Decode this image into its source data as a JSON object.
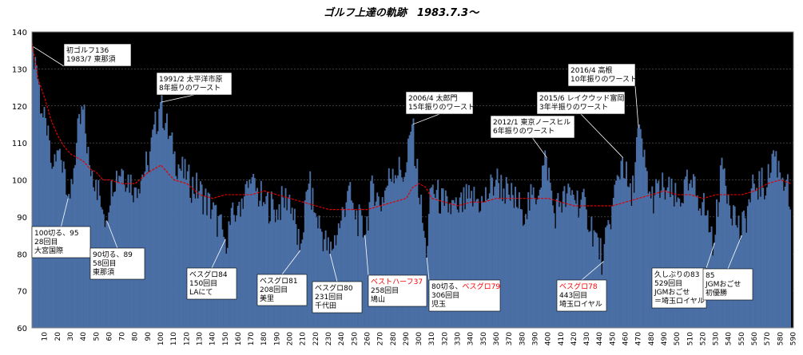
{
  "chart_data": {
    "type": "bar",
    "title": "ゴルフ上達の軌跡　1983.7.3〜",
    "xlabel": "",
    "ylabel": "",
    "ylim": [
      60,
      140
    ],
    "xlim": [
      0,
      590
    ],
    "yticks": [
      60,
      70,
      80,
      90,
      100,
      110,
      120,
      130,
      140
    ],
    "xticks": [
      10,
      20,
      30,
      40,
      50,
      60,
      70,
      80,
      90,
      100,
      110,
      120,
      130,
      140,
      150,
      160,
      170,
      180,
      190,
      200,
      210,
      220,
      230,
      240,
      250,
      260,
      270,
      280,
      290,
      300,
      310,
      320,
      330,
      340,
      350,
      360,
      370,
      380,
      390,
      400,
      410,
      420,
      430,
      440,
      450,
      460,
      470,
      480,
      490,
      500,
      510,
      520,
      530,
      540,
      550,
      560,
      570,
      580,
      590
    ],
    "grid": "horizontal",
    "colors": {
      "plot_bg": "#000000",
      "bar": "#4a6fa5",
      "moving_average": "#e00000",
      "frame": "#808080",
      "highlight_text": "#ff0000"
    },
    "series": [
      {
        "kind": "bar",
        "points": [
          [
            1,
            136
          ],
          [
            4,
            131
          ],
          [
            8,
            118
          ],
          [
            12,
            112
          ],
          [
            16,
            103
          ],
          [
            20,
            108
          ],
          [
            25,
            105
          ],
          [
            30,
            95
          ],
          [
            35,
            110
          ],
          [
            40,
            119
          ],
          [
            45,
            104
          ],
          [
            50,
            100
          ],
          [
            55,
            92
          ],
          [
            58,
            89
          ],
          [
            62,
            100
          ],
          [
            70,
            103
          ],
          [
            80,
            98
          ],
          [
            90,
            104
          ],
          [
            100,
            121
          ],
          [
            110,
            107
          ],
          [
            120,
            100
          ],
          [
            130,
            97
          ],
          [
            140,
            92
          ],
          [
            150,
            84
          ],
          [
            160,
            93
          ],
          [
            170,
            99
          ],
          [
            180,
            94
          ],
          [
            190,
            92
          ],
          [
            200,
            96
          ],
          [
            208,
            81
          ],
          [
            215,
            99
          ],
          [
            220,
            91
          ],
          [
            225,
            86
          ],
          [
            231,
            80
          ],
          [
            240,
            89
          ],
          [
            245,
            97
          ],
          [
            250,
            92
          ],
          [
            258,
            85
          ],
          [
            265,
            99
          ],
          [
            270,
            93
          ],
          [
            280,
            103
          ],
          [
            290,
            102
          ],
          [
            295,
            115
          ],
          [
            306,
            79
          ],
          [
            310,
            98
          ],
          [
            320,
            93
          ],
          [
            330,
            92
          ],
          [
            340,
            95
          ],
          [
            350,
            94
          ],
          [
            360,
            100
          ],
          [
            370,
            96
          ],
          [
            380,
            92
          ],
          [
            390,
            95
          ],
          [
            399,
            106
          ],
          [
            405,
            91
          ],
          [
            410,
            94
          ],
          [
            420,
            96
          ],
          [
            430,
            92
          ],
          [
            443,
            78
          ],
          [
            450,
            93
          ],
          [
            458,
            106
          ],
          [
            465,
            93
          ],
          [
            470,
            114
          ],
          [
            480,
            95
          ],
          [
            490,
            98
          ],
          [
            500,
            94
          ],
          [
            510,
            99
          ],
          [
            520,
            94
          ],
          [
            529,
            83
          ],
          [
            535,
            106
          ],
          [
            540,
            96
          ],
          [
            550,
            85
          ],
          [
            560,
            99
          ],
          [
            570,
            98
          ],
          [
            575,
            108
          ],
          [
            580,
            102
          ],
          [
            585,
            100
          ],
          [
            588,
            92
          ]
        ]
      },
      {
        "kind": "moving-average",
        "points": [
          [
            0,
            137
          ],
          [
            5,
            127
          ],
          [
            10,
            122
          ],
          [
            15,
            116
          ],
          [
            20,
            112
          ],
          [
            25,
            109
          ],
          [
            30,
            107
          ],
          [
            35,
            106
          ],
          [
            40,
            105
          ],
          [
            45,
            103
          ],
          [
            50,
            102
          ],
          [
            55,
            100
          ],
          [
            60,
            100
          ],
          [
            70,
            99
          ],
          [
            80,
            99
          ],
          [
            90,
            102
          ],
          [
            100,
            104
          ],
          [
            110,
            100
          ],
          [
            120,
            99
          ],
          [
            130,
            96
          ],
          [
            140,
            95
          ],
          [
            150,
            96
          ],
          [
            160,
            96
          ],
          [
            170,
            96
          ],
          [
            180,
            97
          ],
          [
            190,
            96
          ],
          [
            200,
            95
          ],
          [
            210,
            94
          ],
          [
            220,
            93
          ],
          [
            230,
            92
          ],
          [
            240,
            92
          ],
          [
            250,
            92
          ],
          [
            260,
            92
          ],
          [
            270,
            93
          ],
          [
            280,
            94
          ],
          [
            290,
            95
          ],
          [
            295,
            98
          ],
          [
            300,
            99
          ],
          [
            305,
            98
          ],
          [
            310,
            95
          ],
          [
            320,
            94
          ],
          [
            330,
            93
          ],
          [
            340,
            94
          ],
          [
            350,
            94
          ],
          [
            360,
            95
          ],
          [
            370,
            95
          ],
          [
            380,
            95
          ],
          [
            390,
            95
          ],
          [
            400,
            95
          ],
          [
            410,
            94
          ],
          [
            420,
            93
          ],
          [
            430,
            93
          ],
          [
            440,
            93
          ],
          [
            450,
            93
          ],
          [
            460,
            94
          ],
          [
            470,
            95
          ],
          [
            480,
            96
          ],
          [
            490,
            97
          ],
          [
            500,
            96
          ],
          [
            510,
            96
          ],
          [
            520,
            95
          ],
          [
            530,
            96
          ],
          [
            540,
            96
          ],
          [
            550,
            96
          ],
          [
            560,
            97
          ],
          [
            570,
            99
          ],
          [
            580,
            100
          ],
          [
            588,
            99
          ]
        ]
      }
    ],
    "annotations": [
      {
        "lines": [
          "初ゴルフ136",
          "1983/7 東那須"
        ],
        "x": 1,
        "y": 136,
        "highlight": [
          false,
          false
        ]
      },
      {
        "lines": [
          "1991/2 太平洋市原",
          "8年振りのワースト"
        ],
        "x": 100,
        "y": 121,
        "highlight": [
          false,
          false
        ]
      },
      {
        "lines": [
          "2006/4 太郎門",
          "15年振りのワースト"
        ],
        "x": 295,
        "y": 115,
        "highlight": [
          false,
          false
        ]
      },
      {
        "lines": [
          "2012/1 東京ノースヒル",
          "6年振りのワースト"
        ],
        "x": 399,
        "y": 106,
        "highlight": [
          false,
          false
        ]
      },
      {
        "lines": [
          "2015/6 レイクウッド富岡",
          "3年半振りのワースト"
        ],
        "x": 458,
        "y": 106,
        "highlight": [
          false,
          false
        ]
      },
      {
        "lines": [
          "2016/4 高根",
          "10年振りのワースト"
        ],
        "x": 470,
        "y": 114,
        "highlight": [
          false,
          false
        ]
      },
      {
        "lines": [
          "100切る、95",
          "28回目",
          "大宮国際"
        ],
        "x": 28,
        "y": 95,
        "highlight": [
          false,
          false,
          false
        ]
      },
      {
        "lines": [
          "90切る、89",
          "58回目",
          "東那須"
        ],
        "x": 58,
        "y": 89,
        "highlight": [
          false,
          false,
          false
        ]
      },
      {
        "lines": [
          "ベスグロ84",
          "150回目",
          "LAにて"
        ],
        "x": 150,
        "y": 84,
        "highlight": [
          false,
          false,
          false
        ]
      },
      {
        "lines": [
          "ベスグロ81",
          "208回目",
          "美里"
        ],
        "x": 208,
        "y": 81,
        "highlight": [
          false,
          false,
          false
        ]
      },
      {
        "lines": [
          "ベスグロ80",
          "231回目",
          "千代田"
        ],
        "x": 231,
        "y": 80,
        "highlight": [
          false,
          false,
          false
        ]
      },
      {
        "lines": [
          "ベストハーフ37",
          "258回目",
          "鳩山"
        ],
        "x": 258,
        "y": 85,
        "highlight": [
          true,
          false,
          false
        ]
      },
      {
        "lines": [
          "80切る、ベスグロ79",
          "306回目",
          "児玉"
        ],
        "x": 306,
        "y": 79,
        "highlight": [
          false,
          false,
          false
        ],
        "partial": {
          "line": 0,
          "plain": "80切る、",
          "red": "ベスグロ79"
        }
      },
      {
        "lines": [
          "ベスグロ78",
          "443回目",
          "埼玉ロイヤル"
        ],
        "x": 443,
        "y": 78,
        "highlight": [
          true,
          false,
          false
        ]
      },
      {
        "lines": [
          "久しぶりの83",
          "529回目",
          "JGMおごせ",
          "＝埼玉ロイヤル"
        ],
        "x": 529,
        "y": 83,
        "highlight": [
          false,
          false,
          false,
          false
        ]
      },
      {
        "lines": [
          "85",
          "JGMおごせ",
          "初優勝"
        ],
        "x": 550,
        "y": 85,
        "highlight": [
          false,
          false,
          false
        ]
      }
    ]
  }
}
